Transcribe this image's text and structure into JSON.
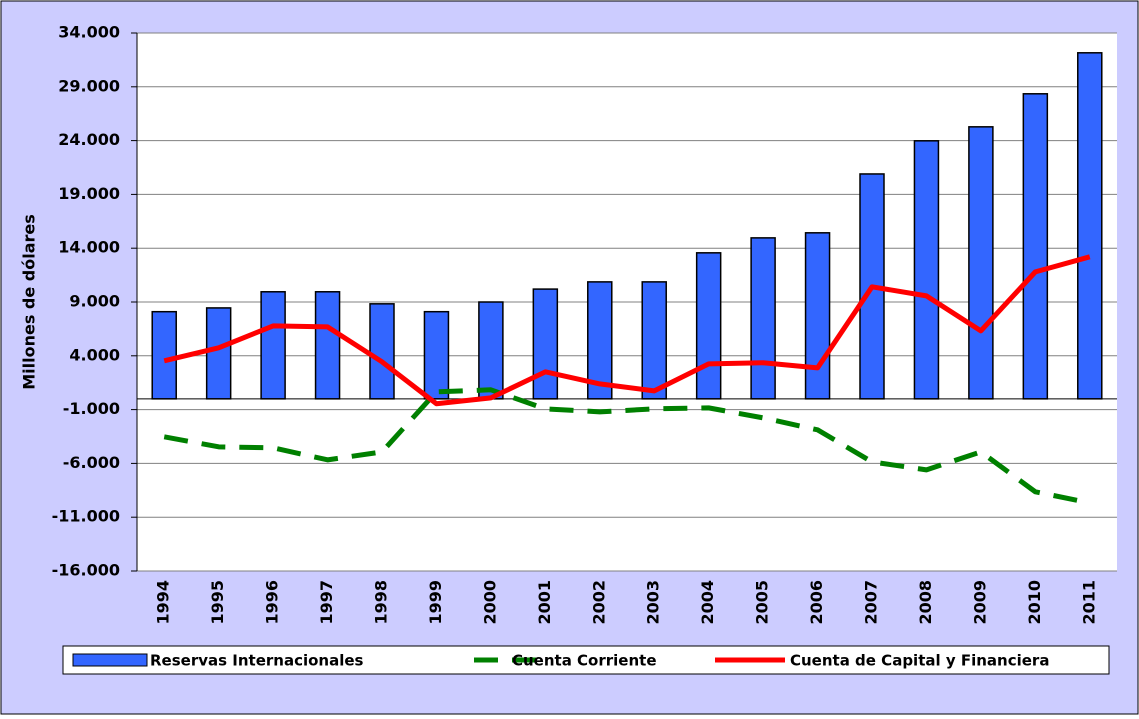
{
  "chart_data": {
    "type": "bar",
    "y_label": "Millones de dólares",
    "categories": [
      "1994",
      "1995",
      "1996",
      "1997",
      "1998",
      "1999",
      "2000",
      "2001",
      "2002",
      "2003",
      "2004",
      "2005",
      "2006",
      "2007",
      "2008",
      "2009",
      "2010",
      "2011"
    ],
    "series": [
      {
        "name": "Reservas Internacionales",
        "type": "bar",
        "color": "#3366ff",
        "values": [
          8100,
          8450,
          9950,
          9950,
          8830,
          8100,
          9000,
          10200,
          10870,
          10870,
          13570,
          14960,
          15430,
          20900,
          23980,
          25280,
          28350,
          32160
        ]
      },
      {
        "name": "Cuenta Corriente",
        "type": "line",
        "line_style": "dashed",
        "color": "#008000",
        "values": [
          -3530,
          -4460,
          -4550,
          -5670,
          -4930,
          650,
          840,
          -930,
          -1210,
          -930,
          -840,
          -1770,
          -2880,
          -5860,
          -6600,
          -4930,
          -8640,
          -9670
        ]
      },
      {
        "name": "Cuenta de Capital y Financiera",
        "type": "line",
        "line_style": "solid",
        "color": "#ff0000",
        "values": [
          3530,
          4740,
          6780,
          6690,
          3440,
          -460,
          90,
          2510,
          1390,
          740,
          3250,
          3350,
          2880,
          10410,
          9570,
          6320,
          11800,
          13200
        ]
      }
    ],
    "ylim": [
      -16000,
      34000
    ],
    "yticks": [
      {
        "value": 34000,
        "label": "34.000"
      },
      {
        "value": 29000,
        "label": "29.000"
      },
      {
        "value": 24000,
        "label": "24.000"
      },
      {
        "value": 19000,
        "label": "19.000"
      },
      {
        "value": 14000,
        "label": "14.000"
      },
      {
        "value": 9000,
        "label": "9.000"
      },
      {
        "value": 4000,
        "label": "4.000"
      },
      {
        "value": -1000,
        "label": "-1.000"
      },
      {
        "value": -6000,
        "label": "-6.000"
      },
      {
        "value": -11000,
        "label": "-11.000"
      },
      {
        "value": -16000,
        "label": "-16.000"
      }
    ],
    "grid": true,
    "legend": "bottom"
  }
}
